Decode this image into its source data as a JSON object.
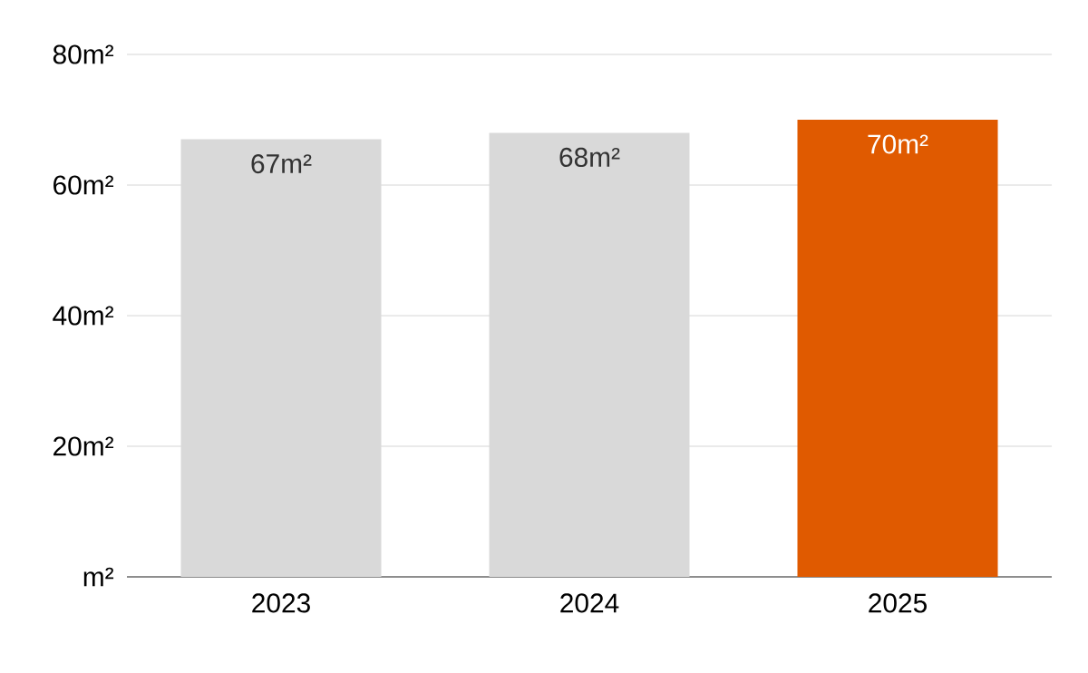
{
  "chart_data": {
    "type": "bar",
    "categories": [
      "2023",
      "2024",
      "2025"
    ],
    "values": [
      67,
      68,
      70
    ],
    "colors": [
      "#d9d9d9",
      "#d9d9d9",
      "#e05a00"
    ],
    "value_labels": [
      "67m²",
      "68m²",
      "70m²"
    ],
    "ylim": [
      0,
      80
    ],
    "yticks": [
      {
        "value": 0,
        "label": "m²"
      },
      {
        "value": 20,
        "label": "20m²"
      },
      {
        "value": 40,
        "label": "40m²"
      },
      {
        "value": 60,
        "label": "60m²"
      },
      {
        "value": 80,
        "label": "80m²"
      }
    ],
    "grid": "y"
  }
}
